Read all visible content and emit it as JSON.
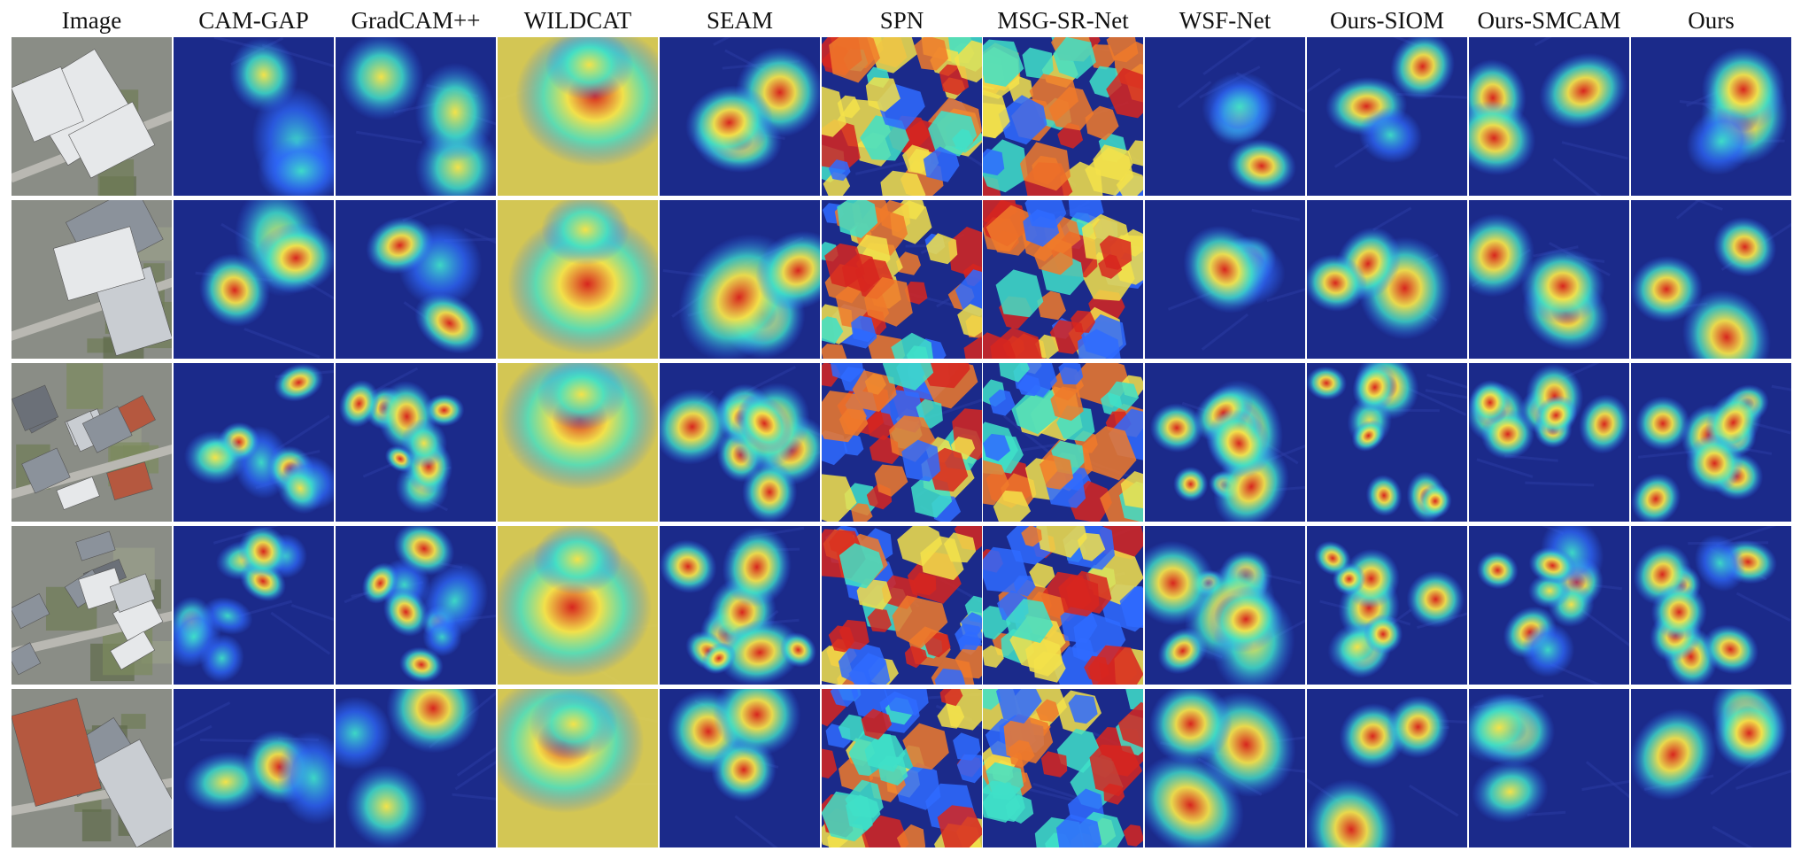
{
  "columns": [
    {
      "id": "image",
      "label": "Image"
    },
    {
      "id": "cam-gap",
      "label": "CAM-GAP"
    },
    {
      "id": "gradcampp",
      "label": "GradCAM++"
    },
    {
      "id": "wildcat",
      "label": "WILDCAT"
    },
    {
      "id": "seam",
      "label": "SEAM"
    },
    {
      "id": "spn",
      "label": "SPN"
    },
    {
      "id": "msg-sr-net",
      "label": "MSG-SR-Net"
    },
    {
      "id": "wsf-net",
      "label": "WSF-Net"
    },
    {
      "id": "ours-siom",
      "label": "Ours-SIOM"
    },
    {
      "id": "ours-smcam",
      "label": "Ours-SMCAM"
    },
    {
      "id": "ours",
      "label": "Ours"
    }
  ],
  "rows": 5,
  "colors": {
    "background": "#ffffff",
    "heatmap_low": "#1b2a8a",
    "heatmap_mid_low": "#2f6bff",
    "heatmap_mid": "#3fe0c8",
    "heatmap_mid_high": "#f3e24a",
    "heatmap_high": "#d7261e",
    "aerial_ground": "#8a8d86",
    "aerial_roof": "#e6e8ea"
  }
}
